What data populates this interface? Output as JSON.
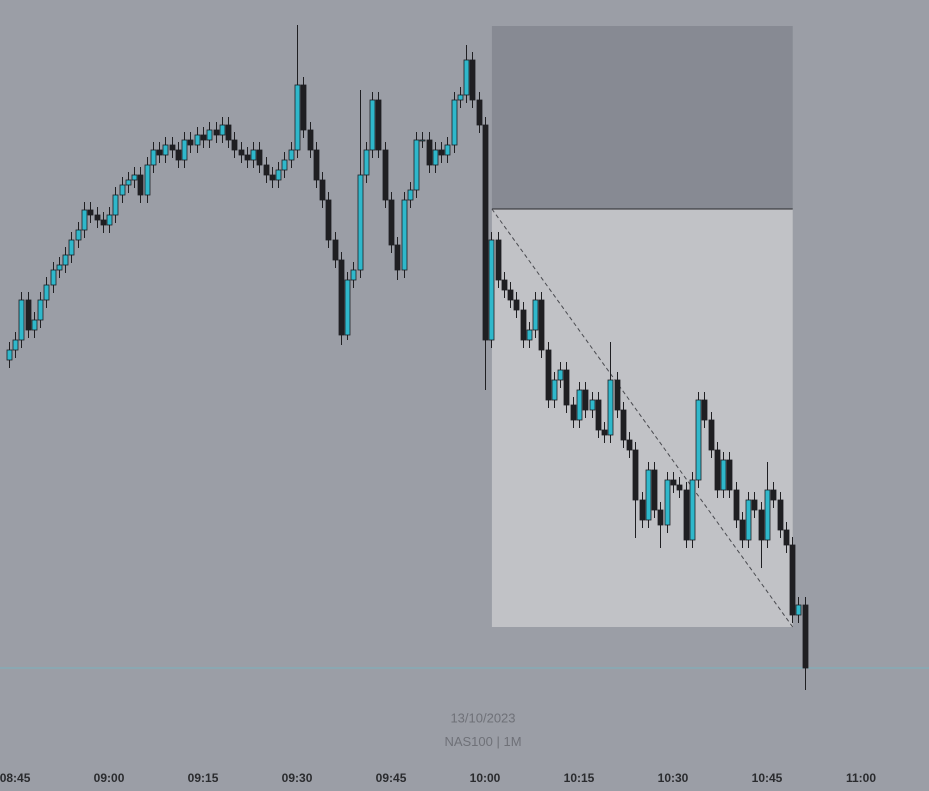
{
  "chart_data": {
    "type": "candlestick",
    "subtitle": "13/10/2023",
    "symbol": "NAS100",
    "interval": "1M",
    "x": [
      524,
      525,
      526,
      527,
      528,
      529,
      530,
      531,
      532,
      533,
      534,
      535,
      536,
      537,
      538,
      539,
      540,
      541,
      542,
      543,
      544,
      545,
      546,
      547,
      548,
      549,
      550,
      551,
      552,
      553,
      554,
      555,
      556,
      557,
      558,
      559,
      560,
      561,
      562,
      563,
      564,
      565,
      566,
      567,
      568,
      569,
      570,
      571,
      572,
      573,
      574,
      575,
      576,
      577,
      578,
      579,
      580,
      581,
      582,
      583,
      584,
      585,
      586,
      587,
      588,
      589,
      590,
      591,
      592,
      593,
      594,
      595,
      596,
      597,
      598,
      599,
      600,
      601,
      602,
      603,
      604,
      605,
      606,
      607,
      608,
      609,
      610,
      611,
      612,
      613,
      614,
      615,
      616,
      617,
      618,
      619,
      620,
      621,
      622,
      623,
      624,
      625,
      626,
      627,
      628,
      629,
      630,
      631,
      632,
      633,
      634,
      635,
      636,
      637,
      638,
      639,
      640,
      641,
      642,
      643,
      644,
      645,
      646,
      647,
      648,
      649,
      650,
      651
    ],
    "open": [
      340,
      350,
      360,
      400,
      370,
      380,
      400,
      415,
      430,
      435,
      445,
      460,
      470,
      490,
      485,
      480,
      475,
      485,
      505,
      515,
      520,
      525,
      505,
      535,
      550,
      545,
      555,
      550,
      540,
      560,
      555,
      565,
      560,
      570,
      565,
      575,
      560,
      550,
      545,
      540,
      550,
      535,
      525,
      520,
      530,
      540,
      550,
      615,
      570,
      550,
      520,
      500,
      460,
      440,
      365,
      420,
      430,
      525,
      550,
      600,
      550,
      500,
      455,
      430,
      500,
      510,
      560,
      560,
      535,
      550,
      545,
      555,
      600,
      605,
      640,
      600,
      575,
      360,
      460,
      420,
      410,
      400,
      390,
      360,
      370,
      400,
      350,
      300,
      320,
      330,
      295,
      280,
      310,
      290,
      300,
      270,
      265,
      320,
      290,
      260,
      250,
      200,
      180,
      230,
      190,
      175,
      220,
      215,
      210,
      160,
      220,
      300,
      280,
      250,
      210,
      240,
      210,
      180,
      160,
      200,
      190,
      160,
      210,
      200,
      170,
      155,
      85,
      95
    ],
    "high": [
      358,
      368,
      408,
      408,
      388,
      408,
      423,
      438,
      443,
      453,
      468,
      478,
      498,
      498,
      493,
      488,
      493,
      513,
      523,
      528,
      533,
      533,
      543,
      558,
      558,
      563,
      563,
      558,
      568,
      568,
      573,
      573,
      578,
      578,
      583,
      583,
      568,
      558,
      553,
      558,
      558,
      543,
      533,
      538,
      548,
      558,
      675,
      623,
      578,
      558,
      528,
      508,
      468,
      448,
      428,
      438,
      610,
      558,
      608,
      608,
      558,
      508,
      463,
      508,
      518,
      568,
      568,
      568,
      558,
      558,
      563,
      608,
      613,
      655,
      648,
      608,
      583,
      468,
      468,
      428,
      418,
      408,
      398,
      378,
      408,
      408,
      358,
      328,
      338,
      338,
      303,
      318,
      318,
      308,
      308,
      278,
      358,
      328,
      298,
      268,
      258,
      208,
      238,
      238,
      198,
      228,
      228,
      223,
      218,
      228,
      308,
      308,
      288,
      258,
      248,
      248,
      218,
      188,
      208,
      208,
      198,
      238,
      218,
      208,
      178,
      163,
      103,
      103
    ],
    "low": [
      332,
      342,
      352,
      362,
      362,
      372,
      392,
      407,
      422,
      427,
      437,
      452,
      462,
      477,
      472,
      467,
      467,
      477,
      497,
      507,
      512,
      497,
      497,
      527,
      537,
      537,
      542,
      532,
      532,
      547,
      547,
      552,
      552,
      557,
      557,
      552,
      542,
      537,
      532,
      532,
      527,
      517,
      512,
      512,
      522,
      532,
      542,
      562,
      542,
      512,
      492,
      452,
      432,
      355,
      360,
      412,
      422,
      517,
      542,
      542,
      492,
      447,
      420,
      422,
      492,
      502,
      552,
      527,
      527,
      537,
      537,
      547,
      592,
      597,
      592,
      567,
      310,
      352,
      412,
      402,
      392,
      382,
      352,
      352,
      362,
      342,
      292,
      292,
      312,
      287,
      272,
      272,
      282,
      282,
      262,
      257,
      257,
      282,
      252,
      242,
      162,
      172,
      172,
      182,
      152,
      167,
      207,
      202,
      152,
      152,
      212,
      272,
      242,
      202,
      202,
      202,
      172,
      152,
      152,
      182,
      132,
      152,
      192,
      162,
      147,
      77,
      77,
      10
    ],
    "close": [
      350,
      360,
      400,
      370,
      380,
      400,
      415,
      430,
      435,
      445,
      460,
      470,
      490,
      485,
      480,
      475,
      485,
      505,
      515,
      520,
      525,
      505,
      535,
      550,
      545,
      555,
      550,
      540,
      560,
      555,
      565,
      560,
      570,
      565,
      575,
      560,
      550,
      545,
      540,
      550,
      535,
      525,
      520,
      530,
      540,
      550,
      615,
      570,
      550,
      520,
      500,
      460,
      440,
      365,
      420,
      430,
      525,
      550,
      600,
      550,
      500,
      455,
      430,
      500,
      510,
      560,
      560,
      535,
      550,
      545,
      555,
      600,
      605,
      640,
      600,
      575,
      360,
      460,
      420,
      410,
      400,
      390,
      360,
      370,
      400,
      350,
      300,
      320,
      330,
      295,
      280,
      310,
      290,
      300,
      270,
      265,
      320,
      290,
      260,
      250,
      200,
      180,
      230,
      190,
      175,
      220,
      215,
      210,
      160,
      220,
      300,
      280,
      250,
      210,
      240,
      210,
      180,
      160,
      200,
      190,
      160,
      210,
      200,
      170,
      155,
      85,
      95,
      32
    ],
    "up_color": "#2fb8cb",
    "down_color": "#1f1f22",
    "position": {
      "x": [
        601.1,
        649.1
      ],
      "stop": 674,
      "entry": 491,
      "target": 73,
      "stop_color": "#878a93",
      "target_color": "#c1c2c6"
    },
    "last_price": 32,
    "xlim": [
      522.6,
      670.85
    ],
    "ylim": [
      0,
      700
    ],
    "xticks": [
      {
        "value": 525,
        "label": "08:45"
      },
      {
        "value": 540,
        "label": "09:00"
      },
      {
        "value": 555,
        "label": "09:15"
      },
      {
        "value": 570,
        "label": "09:30"
      },
      {
        "value": 585,
        "label": "09:45"
      },
      {
        "value": 600,
        "label": "10:00"
      },
      {
        "value": 615,
        "label": "10:15"
      },
      {
        "value": 630,
        "label": "10:30"
      },
      {
        "value": 645,
        "label": "10:45"
      },
      {
        "value": 660,
        "label": "11:00"
      }
    ]
  }
}
